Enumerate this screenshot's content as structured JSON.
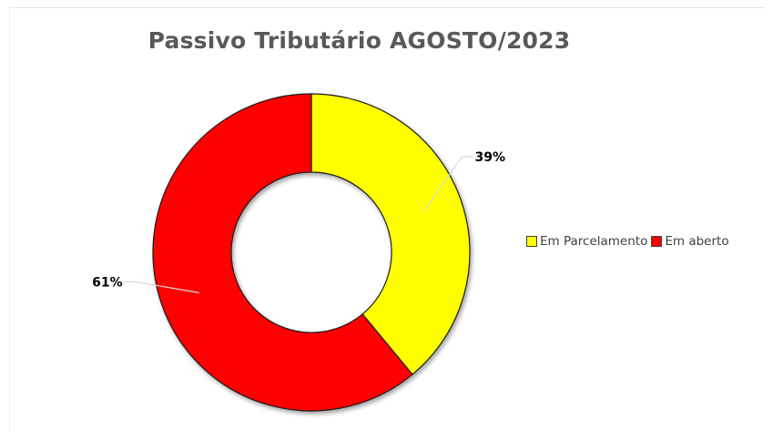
{
  "chart_data": {
    "type": "pie",
    "variant": "doughnut",
    "title": "Passivo Tributário AGOSTO/2023",
    "categories": [
      "Em Parcelamento",
      "Em aberto"
    ],
    "values": [
      39,
      61
    ],
    "data_labels": [
      "39%",
      "61%"
    ],
    "colors": [
      "#FFFF00",
      "#FF0000"
    ],
    "legend_position": "right"
  }
}
